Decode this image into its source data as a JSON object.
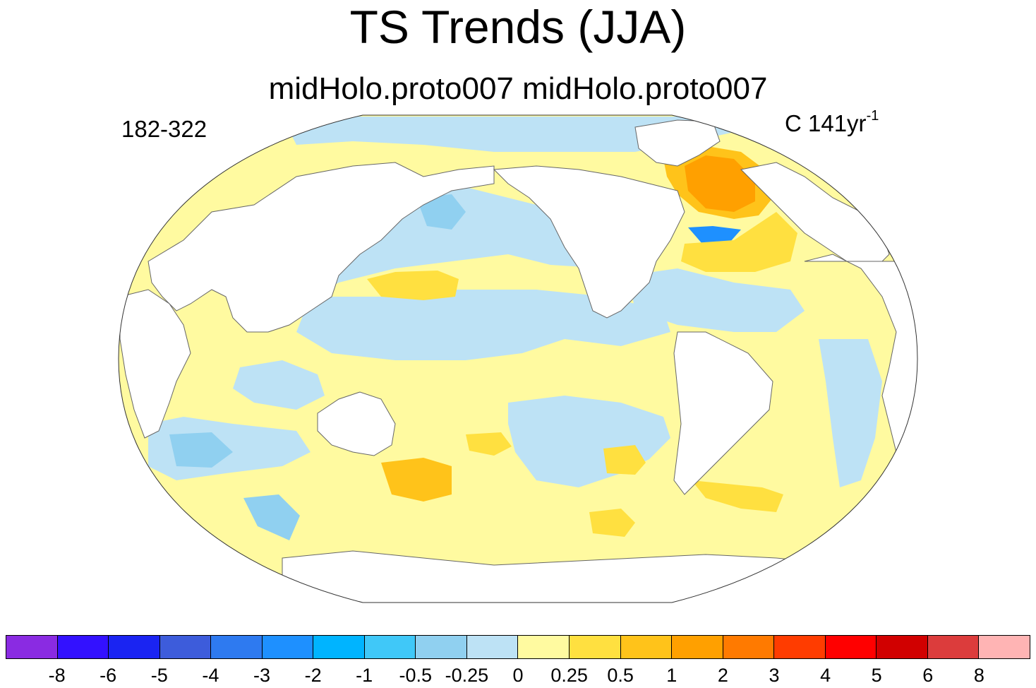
{
  "title": "TS Trends (JJA)",
  "subtitle": "midHolo.proto007  midHolo.proto007",
  "left_label": "182-322",
  "right_label": {
    "units": "C 141yr",
    "exponent": "-1"
  },
  "colorbar": {
    "colors": [
      "#8a2be2",
      "#3311ff",
      "#1a24f2",
      "#3d5cdb",
      "#2e7af0",
      "#1e90ff",
      "#00b4ff",
      "#40c8f8",
      "#90d0f0",
      "#bde2f5",
      "#fffaa0",
      "#ffe040",
      "#ffc31a",
      "#ffa000",
      "#ff7a00",
      "#ff3c00",
      "#ff0000",
      "#d10000",
      "#dc3c3c",
      "#ffb4b4"
    ],
    "tick_labels": [
      "-8",
      "-6",
      "-5",
      "-4",
      "-3",
      "-2",
      "-1",
      "-0.5",
      "-0.25",
      "0",
      "0.25",
      "0.5",
      "1",
      "2",
      "3",
      "4",
      "5",
      "6",
      "8"
    ]
  },
  "map_colors": {
    "ocean_base": "#fffaa0",
    "land": "#ffffff",
    "coast": "#666666",
    "cool_light": "#bde2f5",
    "cool_mid": "#90d0f0",
    "cool_strong": "#40c8f8",
    "cool_deep": "#1e90ff",
    "warm_mid": "#ffe040",
    "warm_strong": "#ffc31a",
    "warm_deep": "#ffa000"
  }
}
